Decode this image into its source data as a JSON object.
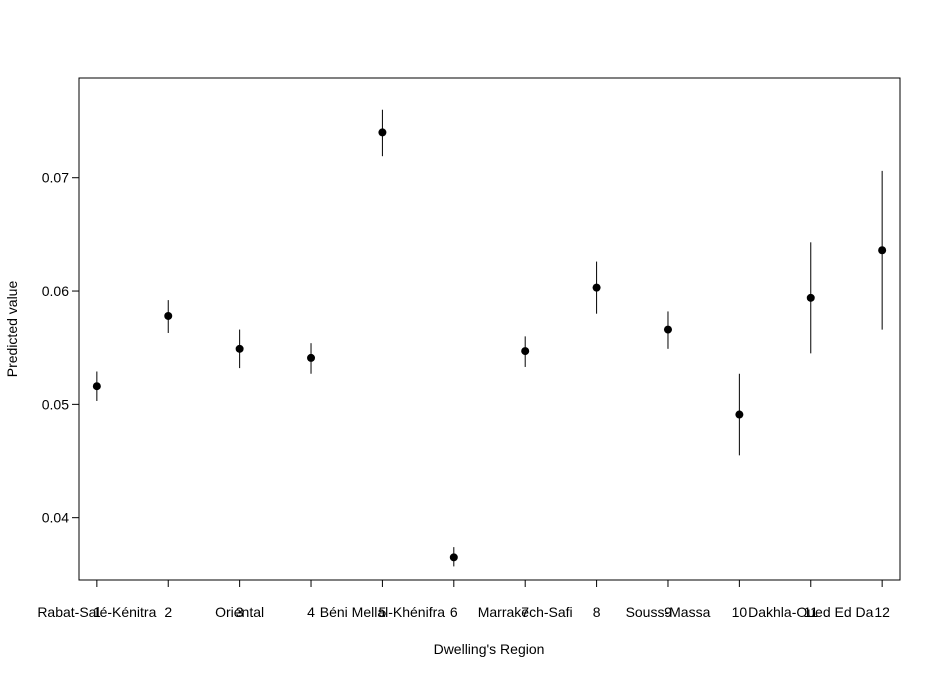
{
  "chart_data": {
    "type": "scatter",
    "xlabel": "Dwelling's Region",
    "ylabel": "Predicted value",
    "categories": [
      "1",
      "2",
      "3",
      "4",
      "5",
      "6",
      "7",
      "8",
      "9",
      "10",
      "11",
      "12"
    ],
    "category_names": [
      "Rabat-Salé-Kénitra",
      "",
      "Oriental",
      "",
      "Béni Mellal-Khénifra",
      "",
      "Marrakech-Safi",
      "",
      "Souss-Massa",
      "",
      "Dakhla-Oued Ed Da",
      ""
    ],
    "values": [
      0.0516,
      0.0578,
      0.0549,
      0.0541,
      0.074,
      0.0365,
      0.0547,
      0.0603,
      0.0566,
      0.0491,
      0.0594,
      0.0636
    ],
    "lower": [
      0.0503,
      0.0563,
      0.0532,
      0.0527,
      0.0719,
      0.0357,
      0.0533,
      0.058,
      0.0549,
      0.0455,
      0.0545,
      0.0566
    ],
    "upper": [
      0.0529,
      0.0592,
      0.0566,
      0.0554,
      0.076,
      0.0374,
      0.056,
      0.0626,
      0.0582,
      0.0527,
      0.0643,
      0.0706
    ],
    "xlim": [
      0.75,
      12.25
    ],
    "ylim": [
      0.0345,
      0.0788
    ],
    "yticks": [
      0.04,
      0.05,
      0.06,
      0.07
    ],
    "ytick_labels": [
      "0.04",
      "0.05",
      "0.06",
      "0.07"
    ],
    "grid": false,
    "marker_color": "#000000",
    "errorbar_color": "#000000"
  }
}
